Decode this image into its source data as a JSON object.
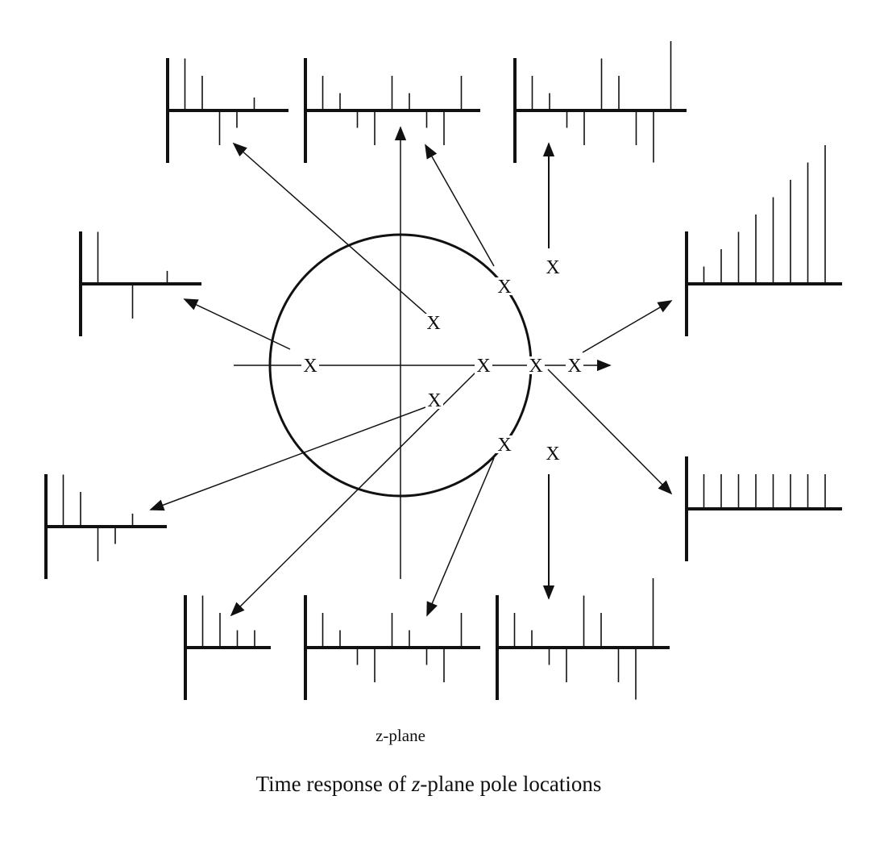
{
  "diagram": {
    "plane_label": "z-plane",
    "caption_prefix": "Time response of ",
    "caption_var": "z",
    "caption_suffix": "-plane pole locations",
    "pole_marker": "X",
    "ink_color": "#111111"
  },
  "responses": [
    {
      "id": "top-left",
      "values": [
        3,
        2,
        -2,
        -1,
        0.75
      ]
    },
    {
      "id": "top-middle",
      "values": [
        2,
        1,
        -1,
        -2,
        2,
        1,
        -1,
        -2,
        2
      ]
    },
    {
      "id": "top-right",
      "values": [
        2,
        1,
        -1,
        -2,
        3,
        2,
        -2,
        -3,
        4
      ]
    },
    {
      "id": "left-middle",
      "values": [
        3,
        0,
        -2,
        0,
        0.75
      ]
    },
    {
      "id": "right-middle",
      "values": [
        1,
        2,
        3,
        4,
        5,
        6,
        7,
        8
      ]
    },
    {
      "id": "right-lower",
      "values": [
        2,
        2,
        2,
        2,
        2,
        2,
        2,
        2
      ]
    },
    {
      "id": "left-lower",
      "values": [
        3,
        2,
        -2,
        -1,
        0.75
      ]
    },
    {
      "id": "bottom-left",
      "values": [
        3,
        2,
        1,
        1
      ]
    },
    {
      "id": "bottom-middle",
      "values": [
        2,
        1,
        -1,
        -2,
        2,
        1,
        -1,
        -2,
        2
      ]
    },
    {
      "id": "bottom-right",
      "values": [
        2,
        1,
        -1,
        -2,
        3,
        2,
        -2,
        -3,
        4
      ]
    }
  ]
}
